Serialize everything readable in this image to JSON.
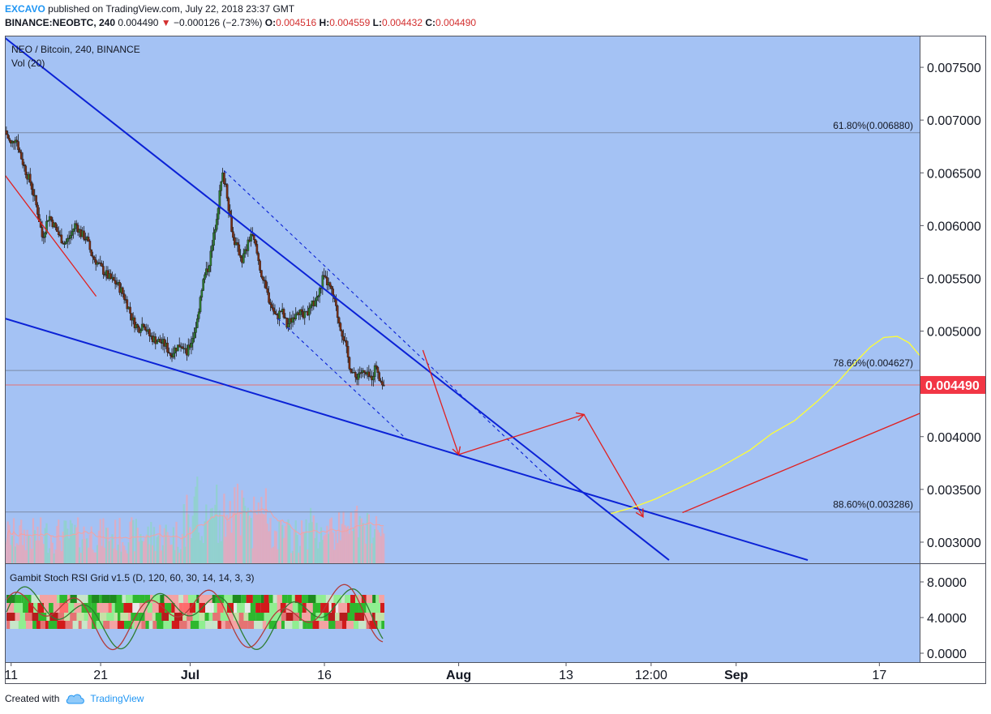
{
  "header": {
    "author": "EXCAVO",
    "published_text": "published on TradingView.com, July 22, 2018 23:37 GMT",
    "symbol": "BINANCE:NEOBTC, 240",
    "last": "0.004490",
    "change_arrow": "▼",
    "change": "−0.000126 (−2.73%)",
    "open_label": "O:",
    "open": "0.004516",
    "high_label": "H:",
    "high": "0.004559",
    "low_label": "L:",
    "low": "0.004432",
    "close_label": "C:",
    "close": "0.004490"
  },
  "footer": {
    "created_with": "Created with",
    "brand": "TradingView"
  },
  "colors": {
    "pane_bg": "#a4c2f4",
    "trend_blue": "#0b22d6",
    "arrow_red": "#e02020",
    "forecast_yellow": "#ffff33",
    "up_candle": "#2e7d32",
    "down_candle": "#7a2e14",
    "price_tag": "#f23645"
  },
  "chart_data": {
    "type": "candlestick",
    "title": "NEO / Bitcoin, 240, BINANCE",
    "volume_label": "Vol (20)",
    "oscillator_label": "Gambit Stoch RSI Grid v1.5 (D, 120, 60, 30, 14, 14, 3, 3)",
    "price_axis_ticks": [
      "0.007500",
      "0.007000",
      "0.006500",
      "0.006000",
      "0.005500",
      "0.005000",
      "0.004500",
      "0.004000",
      "0.003500",
      "0.003000"
    ],
    "price_axis_hidden_tick": "0.004500",
    "ylim": [
      0.0028,
      0.0078
    ],
    "oscillator_ticks": [
      "8.0000",
      "4.0000",
      "0.0000"
    ],
    "oscillator_ylim": [
      -1,
      10
    ],
    "x_ticks": [
      {
        "label": "11",
        "day": 11
      },
      {
        "label": "21",
        "day": 21
      },
      {
        "label": "Jul",
        "day": 31
      },
      {
        "label": "16",
        "day": 46
      },
      {
        "label": "Aug",
        "day": 61
      },
      {
        "label": "13",
        "day": 73
      },
      {
        "label": "12:00",
        "day": 82.5
      },
      {
        "label": "Sep",
        "day": 92
      },
      {
        "label": "17",
        "day": 108
      }
    ],
    "x_ticks_bold": [
      "Jul",
      "Aug",
      "Sep"
    ],
    "xlim": [
      10.3,
      112.5
    ],
    "last_price": 0.00449,
    "last_price_label": "0.004490",
    "fib_levels": [
      {
        "label": "61.80%(0.006880)",
        "value": 0.00688
      },
      {
        "label": "78.60%(0.004627)",
        "value": 0.004627
      },
      {
        "label": "88.60%(0.003286)",
        "value": 0.003286
      }
    ],
    "price_path": [
      [
        10.3,
        0.0069
      ],
      [
        11.0,
        0.00676
      ],
      [
        11.5,
        0.00685
      ],
      [
        12.0,
        0.00668
      ],
      [
        12.6,
        0.00652
      ],
      [
        13.2,
        0.0064
      ],
      [
        14.0,
        0.00612
      ],
      [
        14.5,
        0.00588
      ],
      [
        15.2,
        0.0061
      ],
      [
        15.8,
        0.006
      ],
      [
        16.4,
        0.0059
      ],
      [
        17.0,
        0.00583
      ],
      [
        17.6,
        0.0059
      ],
      [
        18.2,
        0.00602
      ],
      [
        18.8,
        0.00592
      ],
      [
        19.4,
        0.00588
      ],
      [
        20.0,
        0.00572
      ],
      [
        20.6,
        0.00565
      ],
      [
        21.2,
        0.00558
      ],
      [
        22.0,
        0.0055
      ],
      [
        22.8,
        0.00545
      ],
      [
        23.4,
        0.00537
      ],
      [
        24.0,
        0.00525
      ],
      [
        24.6,
        0.0051
      ],
      [
        25.2,
        0.00502
      ],
      [
        25.8,
        0.00508
      ],
      [
        26.4,
        0.00496
      ],
      [
        27.0,
        0.00492
      ],
      [
        27.6,
        0.0049
      ],
      [
        28.2,
        0.00487
      ],
      [
        28.8,
        0.00478
      ],
      [
        29.4,
        0.00484
      ],
      [
        30.0,
        0.00488
      ],
      [
        30.6,
        0.00478
      ],
      [
        31.2,
        0.00492
      ],
      [
        31.8,
        0.0051
      ],
      [
        32.2,
        0.00538
      ],
      [
        32.6,
        0.00552
      ],
      [
        33.0,
        0.0056
      ],
      [
        33.5,
        0.00582
      ],
      [
        34.0,
        0.00612
      ],
      [
        34.6,
        0.00648
      ],
      [
        35.0,
        0.00638
      ],
      [
        35.4,
        0.00612
      ],
      [
        35.8,
        0.00588
      ],
      [
        36.3,
        0.00578
      ],
      [
        36.8,
        0.00568
      ],
      [
        37.3,
        0.00578
      ],
      [
        37.8,
        0.00592
      ],
      [
        38.3,
        0.0058
      ],
      [
        38.8,
        0.0056
      ],
      [
        39.4,
        0.0054
      ],
      [
        40.0,
        0.00526
      ],
      [
        40.6,
        0.00512
      ],
      [
        41.2,
        0.0052
      ],
      [
        41.8,
        0.00505
      ],
      [
        42.4,
        0.00512
      ],
      [
        43.0,
        0.00522
      ],
      [
        43.6,
        0.00512
      ],
      [
        44.2,
        0.00518
      ],
      [
        44.8,
        0.00527
      ],
      [
        45.4,
        0.00535
      ],
      [
        45.8,
        0.0055
      ],
      [
        46.4,
        0.00545
      ],
      [
        47.0,
        0.00532
      ],
      [
        47.6,
        0.0051
      ],
      [
        48.2,
        0.00492
      ],
      [
        48.8,
        0.00468
      ],
      [
        49.4,
        0.00455
      ],
      [
        50.0,
        0.00462
      ],
      [
        50.6,
        0.00458
      ],
      [
        51.2,
        0.00455
      ],
      [
        51.8,
        0.00468
      ],
      [
        52.3,
        0.00452
      ],
      [
        52.7,
        0.00449
      ]
    ],
    "trendlines": [
      {
        "name": "upper-resistance",
        "style": "solid",
        "points": [
          [
            10.3,
            0.00778
          ],
          [
            84.5,
            0.00283
          ]
        ]
      },
      {
        "name": "lower-support",
        "style": "solid",
        "points": [
          [
            10.3,
            0.00512
          ],
          [
            100.0,
            0.00283
          ]
        ]
      },
      {
        "name": "channel-top",
        "style": "dashed",
        "points": [
          [
            34.8,
            0.00652
          ],
          [
            71.5,
            0.00357
          ]
        ]
      },
      {
        "name": "channel-bottom",
        "style": "dashed",
        "points": [
          [
            40.8,
            0.00512
          ],
          [
            55.5,
            0.00395
          ]
        ]
      }
    ],
    "red_paths": [
      {
        "name": "early-decline-line",
        "arrow": false,
        "points": [
          [
            10.3,
            0.00648
          ],
          [
            20.5,
            0.00533
          ]
        ]
      },
      {
        "name": "projection-drop-1",
        "arrow": true,
        "points": [
          [
            57.0,
            0.00482
          ],
          [
            61.0,
            0.00383
          ]
        ]
      },
      {
        "name": "projection-rise",
        "arrow": true,
        "points": [
          [
            61.0,
            0.00383
          ],
          [
            75.0,
            0.00421
          ]
        ]
      },
      {
        "name": "projection-drop-2",
        "arrow": true,
        "points": [
          [
            75.0,
            0.00421
          ],
          [
            81.6,
            0.00324
          ]
        ]
      },
      {
        "name": "projected-trend",
        "arrow": false,
        "points": [
          [
            86.0,
            0.00328
          ],
          [
            112.5,
            0.00422
          ]
        ]
      }
    ],
    "forecast_curve": [
      [
        78.0,
        0.00327
      ],
      [
        80.5,
        0.00333
      ],
      [
        83.0,
        0.00341
      ],
      [
        86.5,
        0.00355
      ],
      [
        90.0,
        0.0037
      ],
      [
        93.5,
        0.00387
      ],
      [
        96.0,
        0.00403
      ],
      [
        98.5,
        0.00415
      ],
      [
        101.0,
        0.00433
      ],
      [
        103.5,
        0.00453
      ],
      [
        105.5,
        0.00472
      ],
      [
        107.0,
        0.00485
      ],
      [
        108.5,
        0.00494
      ],
      [
        110.0,
        0.00495
      ],
      [
        111.3,
        0.00489
      ],
      [
        112.5,
        0.00477
      ]
    ]
  }
}
